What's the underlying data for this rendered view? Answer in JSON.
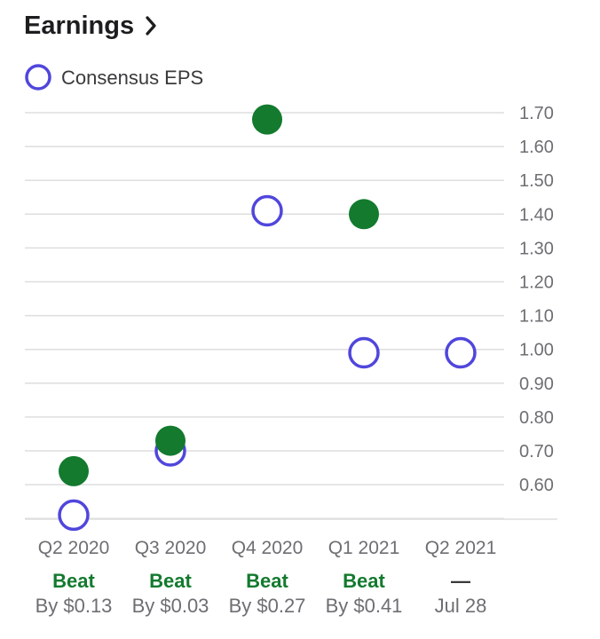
{
  "header": {
    "title": "Earnings",
    "chevron_icon": "chevron-right-icon"
  },
  "legend": {
    "label": "Consensus EPS"
  },
  "colors": {
    "estimate": "#5046dc",
    "actual": "#137a2e",
    "beat_text": "#137a2e",
    "grid": "#dedede",
    "axis_text": "#6e6e73"
  },
  "chart_data": {
    "type": "scatter",
    "title": "Earnings",
    "categories": [
      "Q2 2020",
      "Q3 2020",
      "Q4 2020",
      "Q1 2021",
      "Q2 2021"
    ],
    "series": [
      {
        "name": "Consensus EPS",
        "marker": "hollow-circle",
        "values": [
          0.51,
          0.7,
          1.41,
          0.99,
          0.99
        ]
      },
      {
        "marker": "filled-circle",
        "values": [
          0.64,
          0.73,
          1.68,
          1.4,
          null
        ]
      }
    ],
    "yticks": [
      "0.60",
      "0.70",
      "0.80",
      "0.90",
      "1.00",
      "1.10",
      "1.20",
      "1.30",
      "1.40",
      "1.50",
      "1.60",
      "1.70"
    ],
    "ylim": [
      0.5,
      1.7
    ],
    "yaxis_position": "right",
    "grid": true,
    "legend_position": "top-left",
    "results": [
      {
        "label": "Beat",
        "detail": "By $0.13"
      },
      {
        "label": "Beat",
        "detail": "By $0.03"
      },
      {
        "label": "Beat",
        "detail": "By $0.27"
      },
      {
        "label": "Beat",
        "detail": "By $0.41"
      },
      {
        "label": "—",
        "detail": "Jul 28"
      }
    ]
  }
}
